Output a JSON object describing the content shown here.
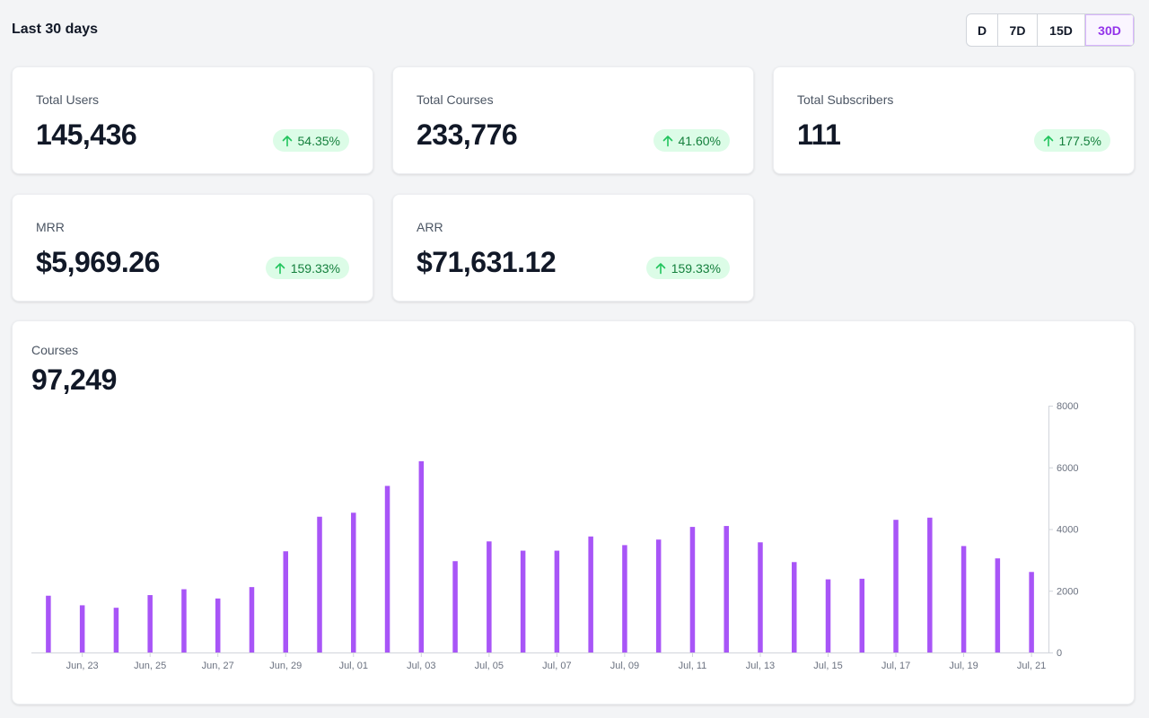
{
  "header": {
    "title": "Last 30 days"
  },
  "range_buttons": [
    {
      "label": "D",
      "active": false
    },
    {
      "label": "7D",
      "active": false
    },
    {
      "label": "15D",
      "active": false
    },
    {
      "label": "30D",
      "active": true
    }
  ],
  "stats": [
    {
      "label": "Total Users",
      "value": "145,436",
      "change": "54.35%"
    },
    {
      "label": "Total Courses",
      "value": "233,776",
      "change": "41.60%"
    },
    {
      "label": "Total Subscribers",
      "value": "111",
      "change": "177.5%"
    },
    {
      "label": "MRR",
      "value": "$5,969.26",
      "change": "159.33%"
    },
    {
      "label": "ARR",
      "value": "$71,631.12",
      "change": "159.33%"
    }
  ],
  "colors": {
    "accent": "#a855f7",
    "badge_bg": "#dcfce7",
    "badge_text": "#15803d",
    "arrow": "#22c55e"
  },
  "icons": {
    "trend": "arrow-up-icon"
  },
  "courses_chart": {
    "label": "Courses",
    "total": "97,249"
  },
  "chart_data": {
    "type": "bar",
    "title": "",
    "xlabel": "",
    "ylabel": "",
    "ylim": [
      0,
      8000
    ],
    "y_ticks": [
      0,
      2000,
      4000,
      6000,
      8000
    ],
    "y_axis_side": "right",
    "grid": false,
    "legend": "none",
    "x_tick_labels": [
      "Jun, 23",
      "Jun, 25",
      "Jun, 27",
      "Jun, 29",
      "Jul, 01",
      "Jul, 03",
      "Jul, 05",
      "Jul, 07",
      "Jul, 09",
      "Jul, 11",
      "Jul, 13",
      "Jul, 15",
      "Jul, 17",
      "Jul, 19",
      "Jul, 21"
    ],
    "categories": [
      "Jun 22",
      "Jun 23",
      "Jun 24",
      "Jun 25",
      "Jun 26",
      "Jun 27",
      "Jun 28",
      "Jun 29",
      "Jun 30",
      "Jul 01",
      "Jul 02",
      "Jul 03",
      "Jul 04",
      "Jul 05",
      "Jul 06",
      "Jul 07",
      "Jul 08",
      "Jul 09",
      "Jul 10",
      "Jul 11",
      "Jul 12",
      "Jul 13",
      "Jul 14",
      "Jul 15",
      "Jul 16",
      "Jul 17",
      "Jul 18",
      "Jul 19",
      "Jul 20",
      "Jul 21"
    ],
    "values": [
      1840,
      1530,
      1450,
      1860,
      2050,
      1750,
      2120,
      3280,
      4400,
      4530,
      5400,
      6200,
      2960,
      3600,
      3300,
      3300,
      3760,
      3480,
      3660,
      4070,
      4100,
      3570,
      2930,
      2370,
      2390,
      4300,
      4370,
      3450,
      3050,
      2610
    ]
  }
}
